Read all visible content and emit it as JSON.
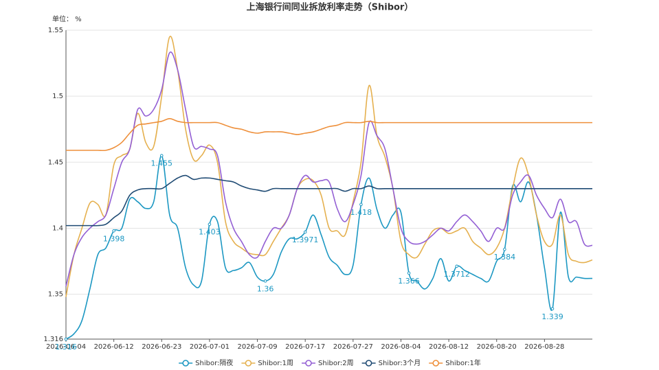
{
  "chart_data": {
    "type": "line",
    "title": "上海银行间同业拆放利率走势（Shibor）",
    "y_axis_label": "单位： %",
    "categories": [
      "2026-06-04",
      null,
      null,
      null,
      null,
      null,
      "2026-06-12",
      null,
      null,
      null,
      null,
      null,
      "2026-06-23",
      null,
      null,
      null,
      null,
      null,
      "2026-07-01",
      null,
      null,
      null,
      null,
      null,
      "2026-07-09",
      null,
      null,
      null,
      null,
      null,
      "2026-07-17",
      null,
      null,
      null,
      null,
      null,
      "2026-07-27",
      null,
      null,
      null,
      null,
      null,
      "2026-08-04",
      null,
      null,
      null,
      null,
      null,
      "2026-08-12",
      null,
      null,
      null,
      null,
      null,
      "2026-08-20",
      null,
      null,
      null,
      null,
      null,
      "2026-08-28",
      null,
      null,
      null,
      null,
      null,
      null
    ],
    "ylim": [
      1.316,
      1.55
    ],
    "yticks": [
      1.316,
      1.35,
      1.4,
      1.45,
      1.5,
      1.55
    ],
    "grid": true,
    "legend": "bottom",
    "series": [
      {
        "name": "Shibor:隔夜",
        "color": "#1b97c2",
        "values": [
          1.316,
          1.32,
          1.33,
          1.354,
          1.38,
          1.385,
          1.398,
          1.4,
          1.422,
          1.42,
          1.415,
          1.42,
          1.455,
          1.41,
          1.4,
          1.37,
          1.357,
          1.36,
          1.403,
          1.405,
          1.37,
          1.368,
          1.37,
          1.374,
          1.363,
          1.36,
          1.365,
          1.382,
          1.392,
          1.392,
          1.3971,
          1.41,
          1.395,
          1.378,
          1.372,
          1.365,
          1.372,
          1.418,
          1.438,
          1.414,
          1.4,
          1.41,
          1.412,
          1.366,
          1.36,
          1.354,
          1.362,
          1.377,
          1.36,
          1.3712,
          1.368,
          1.365,
          1.362,
          1.36,
          1.375,
          1.384,
          1.432,
          1.42,
          1.435,
          1.41,
          1.37,
          1.339,
          1.412,
          1.363,
          1.363,
          1.362,
          1.362
        ],
        "value_labels": [
          "1.316",
          null,
          null,
          null,
          null,
          null,
          "1.398",
          null,
          null,
          null,
          null,
          null,
          "1.455",
          null,
          null,
          null,
          null,
          null,
          "1.403",
          null,
          null,
          null,
          null,
          null,
          null,
          "1.36",
          null,
          null,
          null,
          null,
          "1.3971",
          null,
          null,
          null,
          null,
          null,
          null,
          "1.418",
          null,
          null,
          null,
          null,
          null,
          "1.366",
          null,
          null,
          null,
          null,
          null,
          "1.3712",
          null,
          null,
          null,
          null,
          null,
          "1.384",
          null,
          null,
          null,
          null,
          null,
          "1.339",
          null,
          null,
          null,
          null,
          null
        ]
      },
      {
        "name": "Shibor:1周",
        "color": "#e5b04e",
        "values": [
          1.348,
          1.38,
          1.4,
          1.419,
          1.418,
          1.41,
          1.448,
          1.455,
          1.46,
          1.487,
          1.465,
          1.462,
          1.5,
          1.545,
          1.52,
          1.475,
          1.452,
          1.455,
          1.463,
          1.45,
          1.405,
          1.39,
          1.385,
          1.381,
          1.38,
          1.38,
          1.39,
          1.4,
          1.41,
          1.43,
          1.437,
          1.436,
          1.425,
          1.4,
          1.398,
          1.395,
          1.42,
          1.45,
          1.508,
          1.47,
          1.454,
          1.43,
          1.39,
          1.38,
          1.378,
          1.388,
          1.398,
          1.4,
          1.396,
          1.398,
          1.4,
          1.39,
          1.385,
          1.38,
          1.385,
          1.4,
          1.43,
          1.453,
          1.44,
          1.41,
          1.39,
          1.388,
          1.41,
          1.38,
          1.375,
          1.374,
          1.376
        ]
      },
      {
        "name": "Shibor:2周",
        "color": "#935fd4",
        "values": [
          1.356,
          1.38,
          1.393,
          1.4,
          1.405,
          1.41,
          1.43,
          1.45,
          1.46,
          1.49,
          1.485,
          1.49,
          1.505,
          1.533,
          1.52,
          1.49,
          1.462,
          1.462,
          1.46,
          1.455,
          1.42,
          1.4,
          1.39,
          1.38,
          1.378,
          1.39,
          1.4,
          1.4,
          1.41,
          1.43,
          1.44,
          1.435,
          1.436,
          1.435,
          1.415,
          1.405,
          1.418,
          1.44,
          1.48,
          1.47,
          1.46,
          1.43,
          1.4,
          1.39,
          1.388,
          1.39,
          1.395,
          1.4,
          1.398,
          1.405,
          1.41,
          1.405,
          1.398,
          1.39,
          1.4,
          1.4,
          1.425,
          1.435,
          1.44,
          1.425,
          1.415,
          1.408,
          1.422,
          1.405,
          1.405,
          1.388,
          1.387
        ]
      },
      {
        "name": "Shibor:3个月",
        "color": "#1e4a73",
        "values": [
          1.402,
          1.402,
          1.402,
          1.402,
          1.402,
          1.403,
          1.408,
          1.413,
          1.425,
          1.429,
          1.43,
          1.43,
          1.43,
          1.434,
          1.438,
          1.44,
          1.437,
          1.438,
          1.438,
          1.437,
          1.436,
          1.435,
          1.432,
          1.43,
          1.429,
          1.428,
          1.43,
          1.43,
          1.43,
          1.43,
          1.43,
          1.43,
          1.43,
          1.43,
          1.43,
          1.428,
          1.43,
          1.43,
          1.432,
          1.43,
          1.43,
          1.43,
          1.43,
          1.43,
          1.43,
          1.43,
          1.43,
          1.43,
          1.43,
          1.43,
          1.43,
          1.43,
          1.43,
          1.43,
          1.43,
          1.43,
          1.43,
          1.43,
          1.43,
          1.43,
          1.43,
          1.43,
          1.43,
          1.43,
          1.43,
          1.43,
          1.43
        ]
      },
      {
        "name": "Shibor:1年",
        "color": "#ee8f3a",
        "values": [
          1.459,
          1.459,
          1.459,
          1.459,
          1.459,
          1.459,
          1.461,
          1.465,
          1.472,
          1.478,
          1.479,
          1.48,
          1.481,
          1.483,
          1.481,
          1.48,
          1.48,
          1.48,
          1.48,
          1.48,
          1.478,
          1.476,
          1.475,
          1.473,
          1.472,
          1.473,
          1.473,
          1.473,
          1.472,
          1.471,
          1.472,
          1.473,
          1.475,
          1.477,
          1.478,
          1.48,
          1.48,
          1.48,
          1.481,
          1.48,
          1.48,
          1.48,
          1.48,
          1.48,
          1.48,
          1.48,
          1.48,
          1.48,
          1.48,
          1.48,
          1.48,
          1.48,
          1.48,
          1.48,
          1.48,
          1.48,
          1.48,
          1.48,
          1.48,
          1.48,
          1.48,
          1.48,
          1.48,
          1.48,
          1.48,
          1.48,
          1.48
        ]
      }
    ]
  }
}
